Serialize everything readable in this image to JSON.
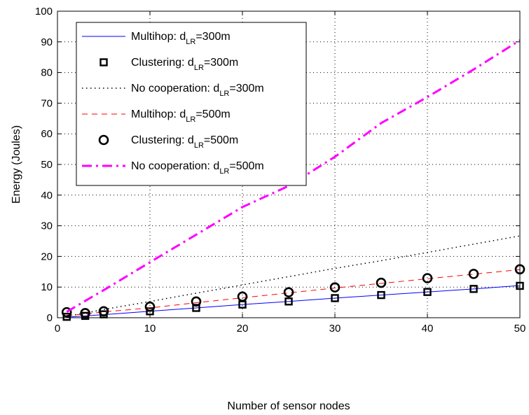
{
  "chart_data": {
    "type": "line",
    "xlabel": "Number of sensor nodes",
    "ylabel": "Energy (Joules)",
    "xlim": [
      0,
      50
    ],
    "ylim": [
      0,
      100
    ],
    "xticks": [
      0,
      10,
      20,
      30,
      40,
      50
    ],
    "yticks": [
      0,
      10,
      20,
      30,
      40,
      50,
      60,
      70,
      80,
      90,
      100
    ],
    "grid": true,
    "legend_position": "top-left",
    "series": [
      {
        "legend_main": "Multihop: d",
        "legend_sub": "LR",
        "legend_tail": "=300m",
        "style": "solid-line",
        "color": "#0000ff",
        "x": [
          1,
          3,
          5,
          10,
          15,
          20,
          25,
          30,
          35,
          40,
          45,
          50
        ],
        "y": [
          0.2,
          0.6,
          1.0,
          2.1,
          3.2,
          4.3,
          5.3,
          6.4,
          7.4,
          8.4,
          9.4,
          10.5
        ]
      },
      {
        "legend_main": "Clustering: d",
        "legend_sub": "LR",
        "legend_tail": "=300m",
        "style": "square-markers",
        "color": "#000000",
        "x": [
          1,
          3,
          5,
          10,
          15,
          20,
          25,
          30,
          35,
          40,
          45,
          50
        ],
        "y": [
          0.3,
          0.6,
          1.1,
          2.1,
          3.2,
          4.3,
          5.3,
          6.4,
          7.4,
          8.4,
          9.4,
          10.4
        ]
      },
      {
        "legend_main": "No cooperation: d",
        "legend_sub": "LR",
        "legend_tail": "=300m",
        "style": "dotted-line",
        "color": "#000000",
        "x": [
          1,
          3,
          5,
          10,
          15,
          20,
          25,
          30,
          35,
          40,
          45,
          50
        ],
        "y": [
          0.5,
          1.5,
          2.7,
          5.3,
          8.0,
          10.7,
          13.4,
          16.1,
          18.6,
          21.3,
          24.0,
          26.7
        ]
      },
      {
        "legend_main": "Multihop: d",
        "legend_sub": "LR",
        "legend_tail": "=500m",
        "style": "dashed-line",
        "color": "#ff0000",
        "x": [
          1,
          3,
          5,
          10,
          15,
          20,
          25,
          30,
          35,
          40,
          45,
          50
        ],
        "y": [
          0.8,
          1.2,
          1.9,
          3.2,
          4.9,
          6.5,
          8.1,
          9.7,
          11.2,
          12.7,
          14.2,
          15.7
        ]
      },
      {
        "legend_main": "Clustering: d",
        "legend_sub": "LR",
        "legend_tail": "=500m",
        "style": "circle-markers",
        "color": "#000000",
        "x": [
          1,
          3,
          5,
          10,
          15,
          20,
          25,
          30,
          35,
          40,
          45,
          50
        ],
        "y": [
          1.8,
          1.5,
          2.1,
          3.6,
          5.3,
          6.9,
          8.3,
          9.9,
          11.4,
          12.9,
          14.3,
          15.8
        ]
      },
      {
        "legend_main": "No cooperation: d",
        "legend_sub": "LR",
        "legend_tail": "=500m",
        "style": "dashdot-line",
        "color": "#ff00ff",
        "x": [
          1,
          3,
          5,
          10,
          15,
          20,
          25,
          30,
          35,
          40,
          45,
          50
        ],
        "y": [
          1.9,
          5.5,
          9.0,
          18.1,
          27.1,
          36.1,
          43.0,
          52.5,
          63.5,
          72.0,
          81.0,
          90.5
        ]
      }
    ]
  }
}
